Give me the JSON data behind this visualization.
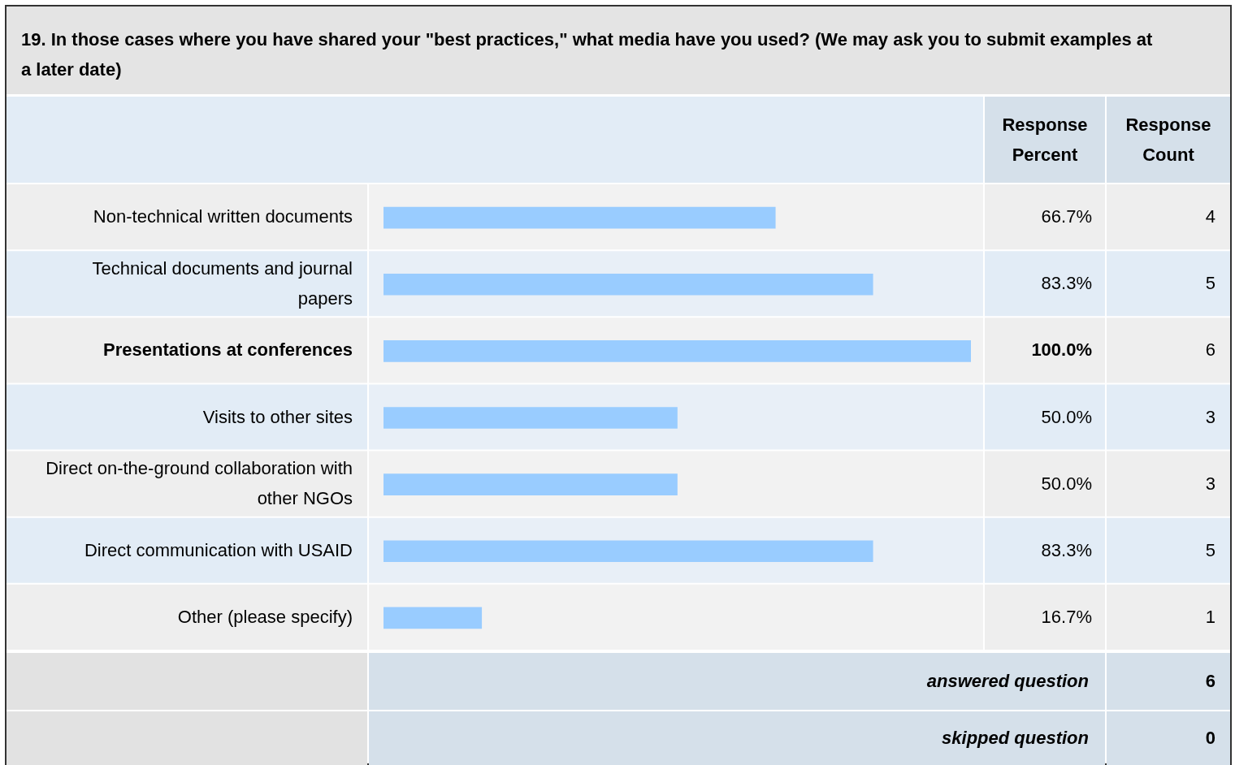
{
  "chart_data": {
    "type": "bar",
    "orientation": "horizontal",
    "title": "19. In those cases where you have shared your \"best practices,\" what media have you used? (We may ask you to submit examples at a later date)",
    "categories": [
      "Non-technical written documents",
      "Technical documents and journal papers",
      "Presentations at conferences",
      "Visits to other sites",
      "Direct on-the-ground collaboration with other NGOs",
      "Direct communication with USAID",
      "Other (please specify)"
    ],
    "values": [
      66.7,
      83.3,
      100,
      50,
      50,
      83.3,
      16.7
    ],
    "value_labels": [
      "66.7%",
      "83.3%",
      "100.0%",
      "50.0%",
      "50.0%",
      "83.3%",
      "16.7%"
    ],
    "color": "#99ccff",
    "xlim": [
      0,
      100
    ],
    "tick_labels": "y",
    "legend": false,
    "annotations": [
      "Response Percent",
      "Response Count",
      "4",
      "5",
      "6",
      "3",
      "3",
      "5",
      "1",
      "answered question",
      "6",
      "skipped question",
      "0"
    ]
  }
}
